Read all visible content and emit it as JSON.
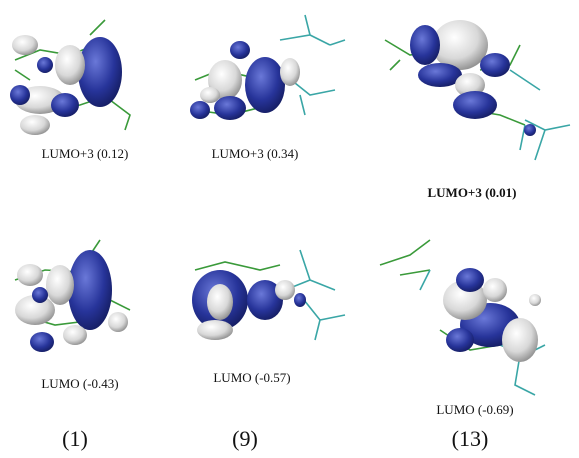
{
  "panels": [
    {
      "compound": "(1)",
      "upper": "LUMO+3 (0.12)",
      "lower": "LUMO (-0.43)"
    },
    {
      "compound": "(9)",
      "upper": "LUMO+3 (0.34)",
      "lower": "LUMO (-0.57)"
    },
    {
      "compound": "(13)",
      "upper": "LUMO+3 (0.01)",
      "lower": "LUMO (-0.69)"
    }
  ]
}
